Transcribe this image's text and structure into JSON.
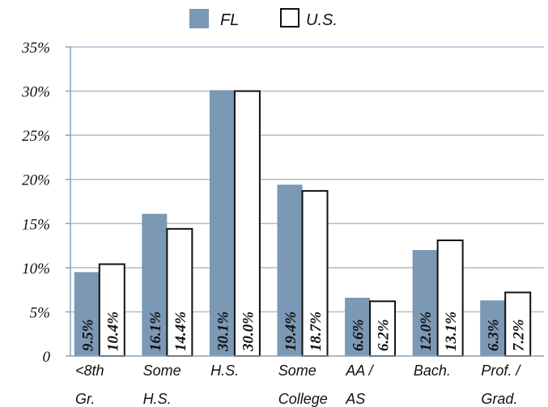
{
  "chart_data": {
    "type": "bar",
    "categories": [
      [
        "<8th",
        "Gr."
      ],
      [
        "Some",
        "H.S."
      ],
      [
        "H.S."
      ],
      [
        "Some",
        "College"
      ],
      [
        "AA /",
        "AS"
      ],
      [
        "Bach."
      ],
      [
        "Prof. /",
        "Grad."
      ]
    ],
    "series": [
      {
        "name": "FL",
        "color": "#7b98b4",
        "values": [
          9.5,
          16.1,
          30.1,
          19.4,
          6.6,
          12.0,
          6.3
        ],
        "labels": [
          "9.5%",
          "16.1%",
          "30.1%",
          "19.4%",
          "6.6%",
          "12.0%",
          "6.3%"
        ]
      },
      {
        "name": "U.S.",
        "color": "#ffffff",
        "values": [
          10.4,
          14.4,
          30.0,
          18.7,
          6.2,
          13.1,
          7.2
        ],
        "labels": [
          "10.4%",
          "14.4%",
          "30.0%",
          "18.7%",
          "6.2%",
          "13.1%",
          "7.2%"
        ]
      }
    ],
    "ylim": [
      0,
      35
    ],
    "yticks": [
      0,
      5,
      10,
      15,
      20,
      25,
      30,
      35
    ],
    "ytick_labels": [
      "0",
      "5%",
      "10%",
      "15%",
      "20%",
      "25%",
      "30%",
      "35%"
    ],
    "grid": true,
    "legend": "top-center",
    "title": "",
    "xlabel": "",
    "ylabel": ""
  }
}
